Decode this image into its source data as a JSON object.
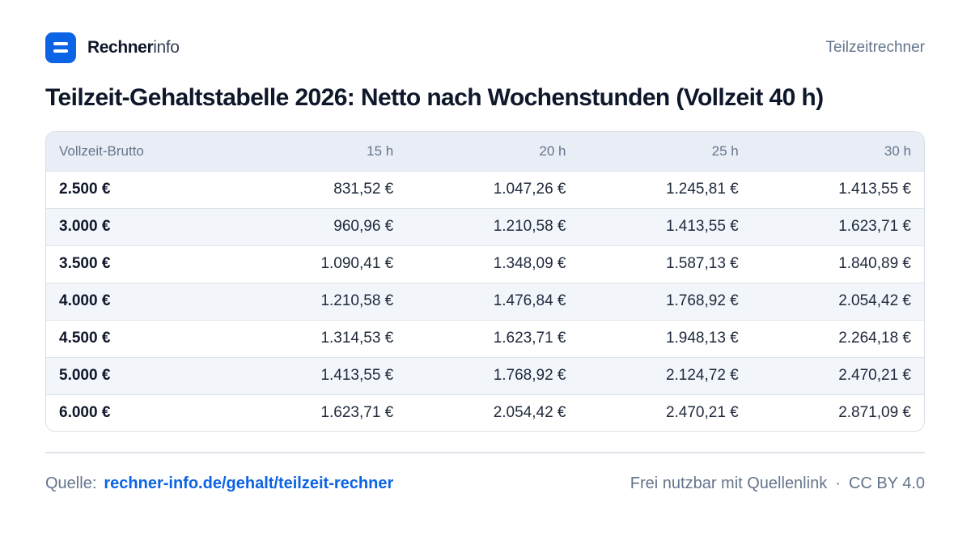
{
  "brand": {
    "name_bold": "Rechner",
    "name_light": "info"
  },
  "header": {
    "link_label": "Teilzeitrechner"
  },
  "title": "Teilzeit-Gehaltstabelle 2026: Netto nach Wochenstunden (Vollzeit 40 h)",
  "table": {
    "headers": [
      "Vollzeit-Brutto",
      "15 h",
      "20 h",
      "25 h",
      "30 h"
    ],
    "rows": [
      [
        "2.500 €",
        "831,52 €",
        "1.047,26 €",
        "1.245,81 €",
        "1.413,55 €"
      ],
      [
        "3.000 €",
        "960,96 €",
        "1.210,58 €",
        "1.413,55 €",
        "1.623,71 €"
      ],
      [
        "3.500 €",
        "1.090,41 €",
        "1.348,09 €",
        "1.587,13 €",
        "1.840,89 €"
      ],
      [
        "4.000 €",
        "1.210,58 €",
        "1.476,84 €",
        "1.768,92 €",
        "2.054,42 €"
      ],
      [
        "4.500 €",
        "1.314,53 €",
        "1.623,71 €",
        "1.948,13 €",
        "2.264,18 €"
      ],
      [
        "5.000 €",
        "1.413,55 €",
        "1.768,92 €",
        "2.124,72 €",
        "2.470,21 €"
      ],
      [
        "6.000 €",
        "1.623,71 €",
        "2.054,42 €",
        "2.470,21 €",
        "2.871,09 €"
      ]
    ]
  },
  "footer": {
    "source_label": "Quelle:",
    "source_link": "rechner-info.de/gehalt/teilzeit-rechner",
    "license_note": "Frei nutzbar mit Quellenlink",
    "separator": "·",
    "license": "CC BY 4.0"
  },
  "colors": {
    "accent": "#0b63e5",
    "text": "#0f172a",
    "muted": "#64748b",
    "header_bg": "#e9eef6",
    "stripe_bg": "#f2f6fb"
  },
  "icons": {
    "logo": "menu-bars-icon"
  }
}
